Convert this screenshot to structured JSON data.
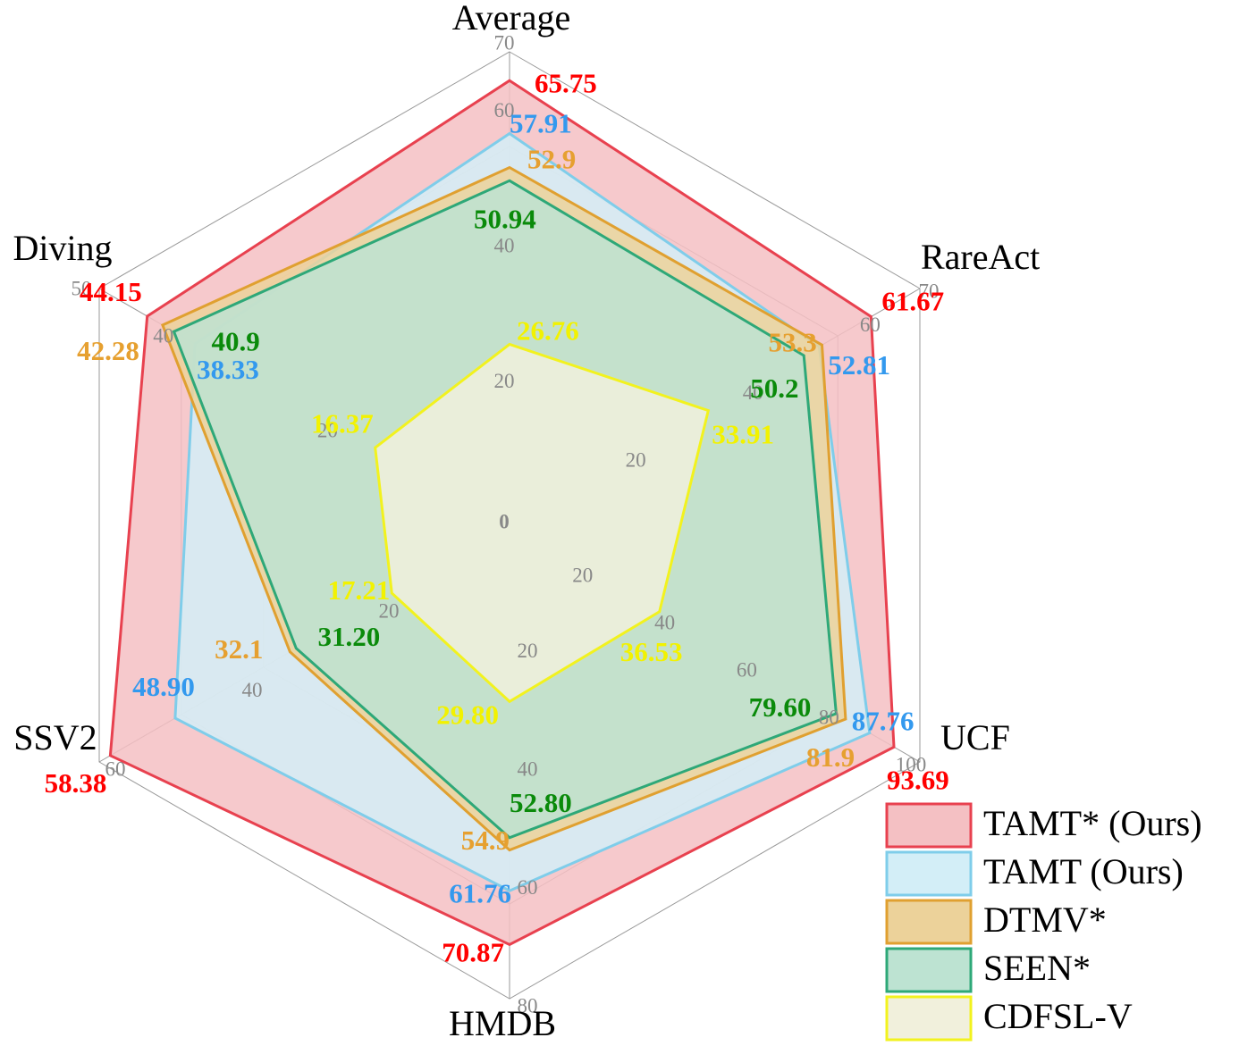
{
  "chart_data": {
    "type": "radar",
    "axes": [
      {
        "name": "Average",
        "max": 70,
        "ticks": [
          0,
          20,
          40,
          60,
          70
        ]
      },
      {
        "name": "RareAct",
        "max": 70,
        "ticks": [
          20,
          40,
          60,
          70
        ]
      },
      {
        "name": "UCF",
        "max": 100,
        "ticks": [
          20,
          40,
          60,
          80,
          100
        ]
      },
      {
        "name": "HMDB",
        "max": 80,
        "ticks": [
          20,
          40,
          60,
          80
        ]
      },
      {
        "name": "SSV2",
        "max": 60,
        "ticks": [
          20,
          40,
          60
        ]
      },
      {
        "name": "Diving",
        "max": 50,
        "ticks": [
          20,
          40,
          50
        ]
      }
    ],
    "series": [
      {
        "name": "TAMT* (Ours)",
        "stroke": "#e8414f",
        "fill": "#f4c0c3",
        "label_color": "#ff0000",
        "values": [
          65.75,
          61.67,
          93.69,
          70.87,
          58.38,
          44.15
        ],
        "labels": [
          "65.75",
          "61.67",
          "93.69",
          "70.87",
          "58.38",
          "44.15"
        ]
      },
      {
        "name": "TAMT (Ours)",
        "stroke": "#7fcdea",
        "fill": "#d3eef7",
        "label_color": "#3399ee",
        "values": [
          57.91,
          52.81,
          87.76,
          61.76,
          48.9,
          38.33
        ],
        "labels": [
          "57.91",
          "52.81",
          "87.76",
          "61.76",
          "48.90",
          "38.33"
        ]
      },
      {
        "name": "DTMV*",
        "stroke": "#e0a030",
        "fill": "#ecd29a",
        "label_color": "#e6a030",
        "values": [
          52.9,
          53.3,
          81.9,
          54.9,
          32.1,
          42.28
        ],
        "labels": [
          "52.9",
          "53.3",
          "81.9",
          "54.9",
          "32.1",
          "42.28"
        ]
      },
      {
        "name": "SEEN*",
        "stroke": "#2ea878",
        "fill": "#bde3d2",
        "label_color": "#0a8a0a",
        "values": [
          50.94,
          50.2,
          79.6,
          52.8,
          31.2,
          40.9
        ],
        "labels": [
          "50.94",
          "50.2",
          "79.60",
          "52.80",
          "31.20",
          "40.9"
        ]
      },
      {
        "name": "CDFSL-V",
        "stroke": "#f2f21e",
        "fill": "#f1f0dc",
        "label_color": "#f2f200",
        "values": [
          26.76,
          33.91,
          36.53,
          29.8,
          17.21,
          16.37
        ],
        "labels": [
          "26.76",
          "33.91",
          "36.53",
          "29.80",
          "17.21",
          "16.37"
        ]
      }
    ],
    "legend_position": "bottom-right"
  }
}
